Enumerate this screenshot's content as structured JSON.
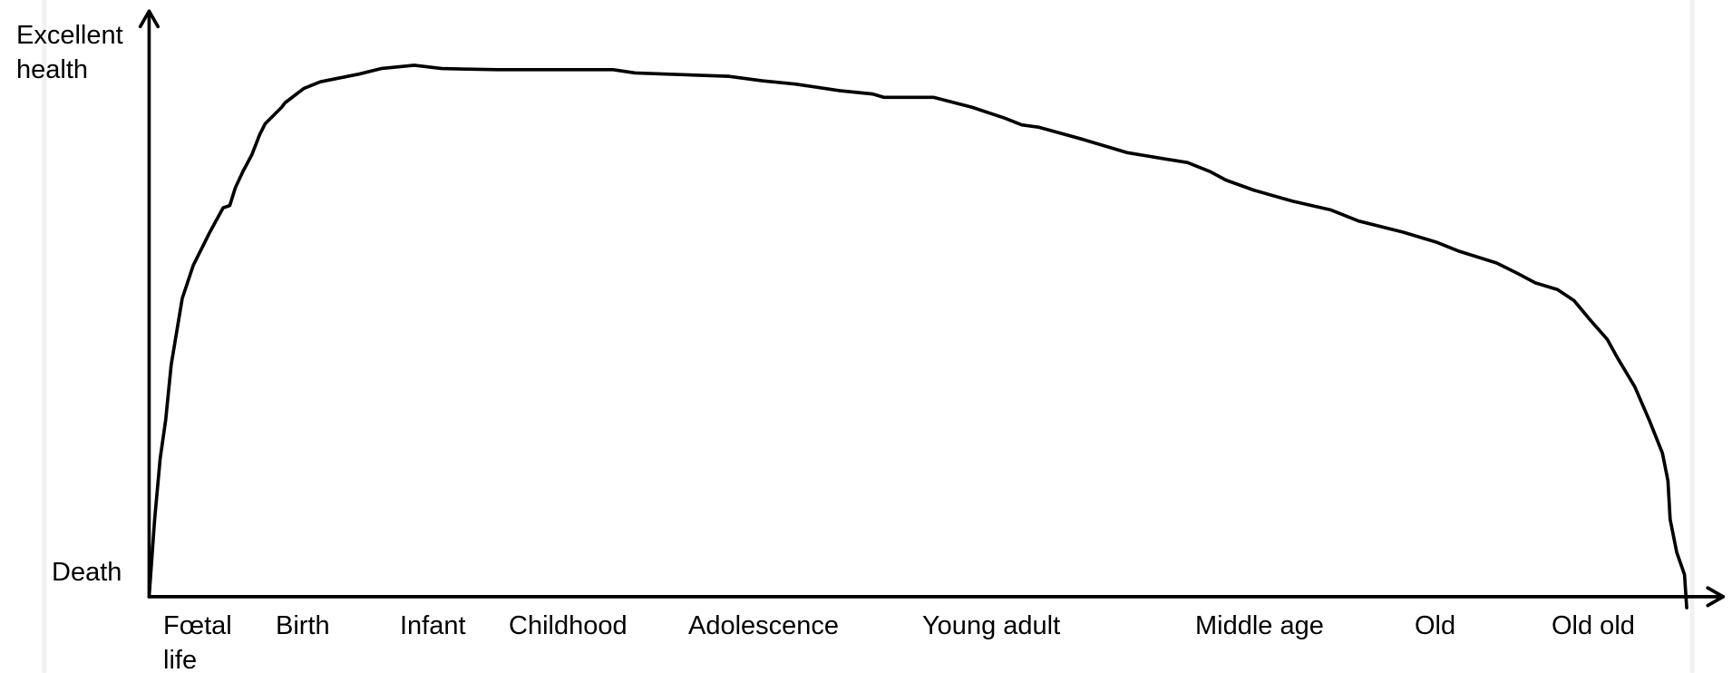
{
  "y_axis": {
    "top_label": "Excellent health",
    "bottom_label": "Death"
  },
  "stages": [
    "Fœtal life",
    "Birth",
    "Infant",
    "Childhood",
    "Adolescence",
    "Young adult",
    "Middle age",
    "Old",
    "Old old"
  ]
}
